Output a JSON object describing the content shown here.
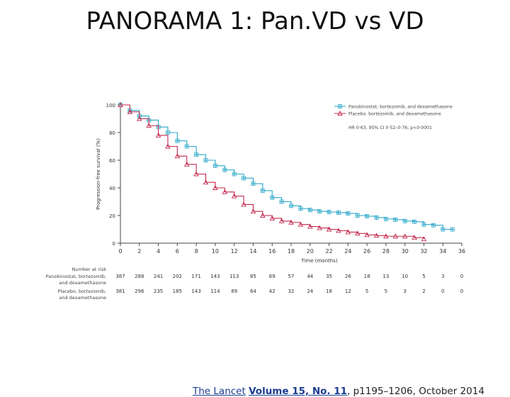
{
  "slide": {
    "title": "PANORAMA 1: Pan.VD vs VD"
  },
  "citation": {
    "journal": "The Lancet",
    "volume": "Volume 15, No. 11",
    "pages": ", p1195–1206, October 2014"
  },
  "chart_data": {
    "type": "line",
    "xlabel": "Time (months)",
    "ylabel": "Progression-free survival (%)",
    "xlim": [
      0,
      36
    ],
    "ylim": [
      0,
      100
    ],
    "x_ticks": [
      0,
      2,
      4,
      6,
      8,
      10,
      12,
      14,
      16,
      18,
      20,
      22,
      24,
      26,
      28,
      30,
      32,
      34,
      36
    ],
    "y_ticks": [
      0,
      20,
      40,
      60,
      80,
      100
    ],
    "y_tick_labels": [
      "0",
      "20",
      "40",
      "60",
      "80",
      "100"
    ],
    "legend_position": "top-right",
    "series": [
      {
        "name": "Panobinostat, bortezomib, and dexamethasone",
        "color": "#2aa7c9",
        "marker": "plus",
        "x": [
          0,
          1,
          2,
          3,
          4,
          5,
          6,
          7,
          8,
          9,
          10,
          11,
          12,
          13,
          14,
          15,
          16,
          17,
          18,
          19,
          20,
          21,
          22,
          23,
          24,
          25,
          26,
          27,
          28,
          29,
          30,
          31,
          32,
          33,
          34,
          35
        ],
        "y": [
          100,
          96,
          92,
          89,
          84,
          80,
          74,
          70,
          64,
          60,
          56,
          53,
          50,
          47,
          43,
          38,
          33,
          30,
          27,
          25,
          24,
          23,
          22.5,
          22,
          21.5,
          20,
          19.5,
          18.5,
          17.5,
          17,
          16,
          15.5,
          13.5,
          13,
          10,
          10
        ]
      },
      {
        "name": "Placebo, bortezomib, and dexamethasone",
        "color": "#c4284e",
        "marker": "triangle",
        "x": [
          0,
          1,
          2,
          3,
          4,
          5,
          6,
          7,
          8,
          9,
          10,
          11,
          12,
          13,
          14,
          15,
          16,
          17,
          18,
          19,
          20,
          21,
          22,
          23,
          24,
          25,
          26,
          27,
          28,
          29,
          30,
          31,
          32
        ],
        "y": [
          100,
          95,
          90,
          85,
          78,
          70,
          63,
          57,
          50,
          44,
          40,
          37,
          34,
          28,
          23,
          20,
          18,
          16,
          15,
          13.5,
          12,
          11,
          10,
          9,
          8,
          7,
          6,
          5.5,
          5,
          5,
          5,
          4,
          3
        ]
      }
    ],
    "annotation": "HR 0·63, 95% CI 0·52–0·76; p<0·0001",
    "risk_table": {
      "title": "Number at risk",
      "rows": [
        {
          "label_line1": "Panobinostat, bortezomib,",
          "label_line2": "and dexamethasone",
          "values": [
            "387",
            "288",
            "241",
            "202",
            "171",
            "143",
            "113",
            "85",
            "69",
            "57",
            "44",
            "35",
            "26",
            "18",
            "13",
            "10",
            "5",
            "3",
            "0"
          ]
        },
        {
          "label_line1": "Placebo, bortezomib,",
          "label_line2": "and dexamethasone",
          "values": [
            "381",
            "296",
            "235",
            "185",
            "143",
            "114",
            "89",
            "64",
            "42",
            "32",
            "24",
            "18",
            "12",
            "5",
            "5",
            "3",
            "2",
            "0",
            "0"
          ]
        }
      ]
    }
  }
}
